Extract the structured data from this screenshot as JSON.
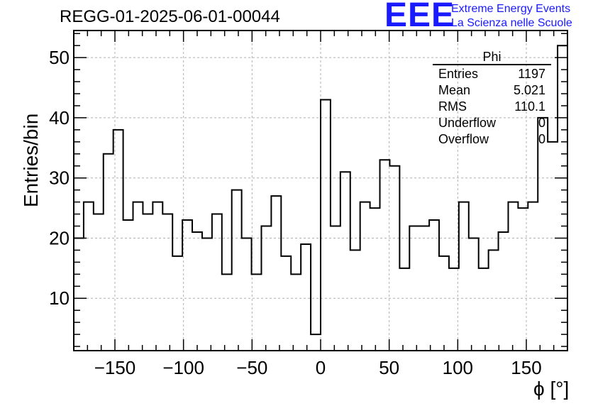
{
  "title": "REGG-01-2025-06-01-00044",
  "logo": {
    "mark": "EEE",
    "line1": "Extreme Energy Events",
    "line2": "La Scienza nelle Scuole",
    "color": "#1a1aff"
  },
  "stats": {
    "name": "Phi",
    "rows": [
      {
        "label": "Entries",
        "value": "1197"
      },
      {
        "label": "Mean",
        "value": "5.021"
      },
      {
        "label": "RMS",
        "value": "110.1"
      },
      {
        "label": "Underflow",
        "value": "0"
      },
      {
        "label": "Overflow",
        "value": "0"
      }
    ]
  },
  "chart_data": {
    "type": "histogram",
    "title": "REGG-01-2025-06-01-00044",
    "xlabel": "ϕ [°]",
    "ylabel": "Entries/bin",
    "xlim": [
      -180,
      180
    ],
    "ylim": [
      1.3,
      54.5
    ],
    "grid": true,
    "bin_width": 7.2,
    "bin_edges_start": -180,
    "x_ticks": [
      "−150",
      "−100",
      "−50",
      "0",
      "50",
      "100",
      "150"
    ],
    "x_tick_values": [
      -150,
      -100,
      -50,
      0,
      50,
      100,
      150
    ],
    "y_ticks": [
      "10",
      "20",
      "30",
      "40",
      "50"
    ],
    "y_tick_values": [
      10,
      20,
      30,
      40,
      50
    ],
    "values": [
      20,
      26,
      24,
      34,
      38,
      23,
      26,
      24,
      26,
      24,
      17,
      23,
      21,
      20,
      24,
      14,
      28,
      20,
      14,
      22,
      27,
      17,
      14,
      19,
      4,
      43,
      22,
      31,
      18,
      26,
      25,
      33,
      32,
      15,
      22,
      22,
      23,
      17,
      15,
      26,
      20,
      15,
      18,
      21,
      26,
      25,
      26,
      40,
      36,
      52
    ],
    "colors": {
      "line": "#000000",
      "grid": "#b0b0b0"
    }
  }
}
